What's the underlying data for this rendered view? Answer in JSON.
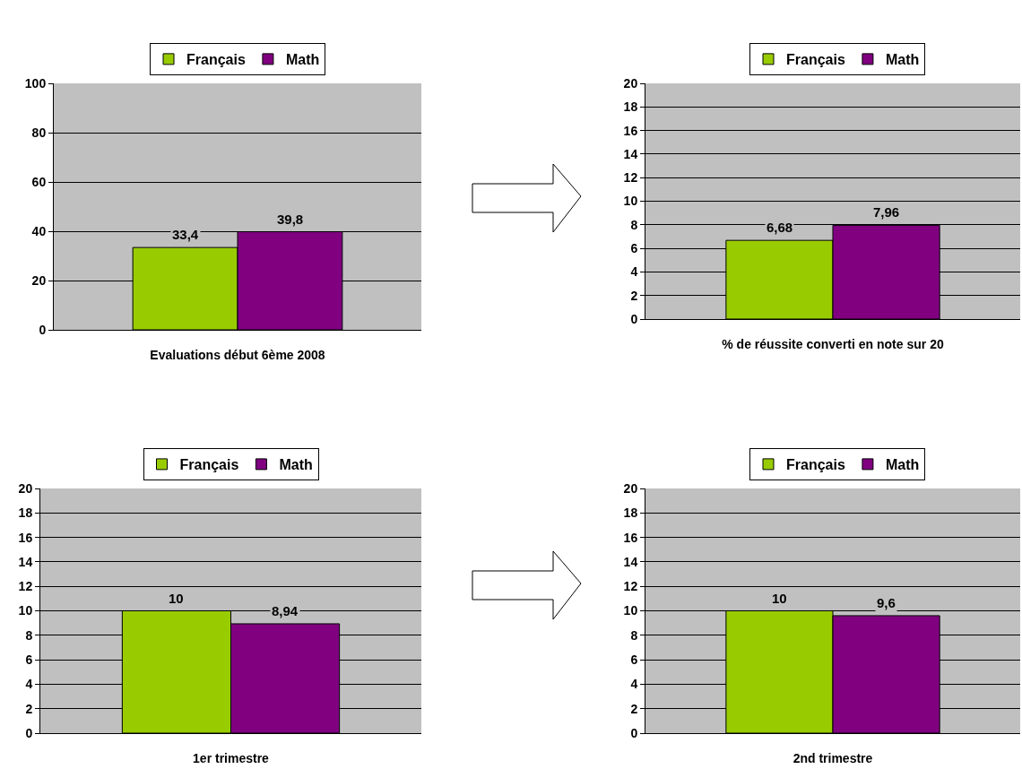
{
  "chart_data": [
    {
      "type": "bar",
      "xlabel": "Evaluations début 6ème 2008",
      "categories": [
        null
      ],
      "ylim": [
        0,
        100
      ],
      "yticks": [
        0,
        20,
        40,
        60,
        80,
        100
      ],
      "grid": "y",
      "legend": "top",
      "series": [
        {
          "name": "Français",
          "color": "#99cc00",
          "values": [
            33.4
          ],
          "value_labels": [
            "33,4"
          ]
        },
        {
          "name": "Math",
          "color": "#800080",
          "values": [
            39.8
          ],
          "value_labels": [
            "39,8"
          ]
        }
      ]
    },
    {
      "type": "bar",
      "xlabel": "% de réussite converti en note sur 20",
      "categories": [
        null
      ],
      "ylim": [
        0,
        20
      ],
      "yticks": [
        0,
        2,
        4,
        6,
        8,
        10,
        12,
        14,
        16,
        18,
        20
      ],
      "grid": "y",
      "legend": "top",
      "series": [
        {
          "name": "Français",
          "color": "#99cc00",
          "values": [
            6.68
          ],
          "value_labels": [
            "6,68"
          ]
        },
        {
          "name": "Math",
          "color": "#800080",
          "values": [
            7.96
          ],
          "value_labels": [
            "7,96"
          ]
        }
      ]
    },
    {
      "type": "bar",
      "xlabel": "1er trimestre",
      "categories": [
        null
      ],
      "ylim": [
        0,
        20
      ],
      "yticks": [
        0,
        2,
        4,
        6,
        8,
        10,
        12,
        14,
        16,
        18,
        20
      ],
      "grid": "y",
      "legend": "top",
      "series": [
        {
          "name": "Français",
          "color": "#99cc00",
          "values": [
            10
          ],
          "value_labels": [
            "10"
          ]
        },
        {
          "name": "Math",
          "color": "#800080",
          "values": [
            8.94
          ],
          "value_labels": [
            "8,94"
          ]
        }
      ]
    },
    {
      "type": "bar",
      "xlabel": "2nd trimestre",
      "categories": [
        null
      ],
      "ylim": [
        0,
        20
      ],
      "yticks": [
        0,
        2,
        4,
        6,
        8,
        10,
        12,
        14,
        16,
        18,
        20
      ],
      "grid": "y",
      "legend": "top",
      "series": [
        {
          "name": "Français",
          "color": "#99cc00",
          "values": [
            10
          ],
          "value_labels": [
            "10"
          ]
        },
        {
          "name": "Math",
          "color": "#800080",
          "values": [
            9.6
          ],
          "value_labels": [
            "9,6"
          ]
        }
      ]
    }
  ]
}
